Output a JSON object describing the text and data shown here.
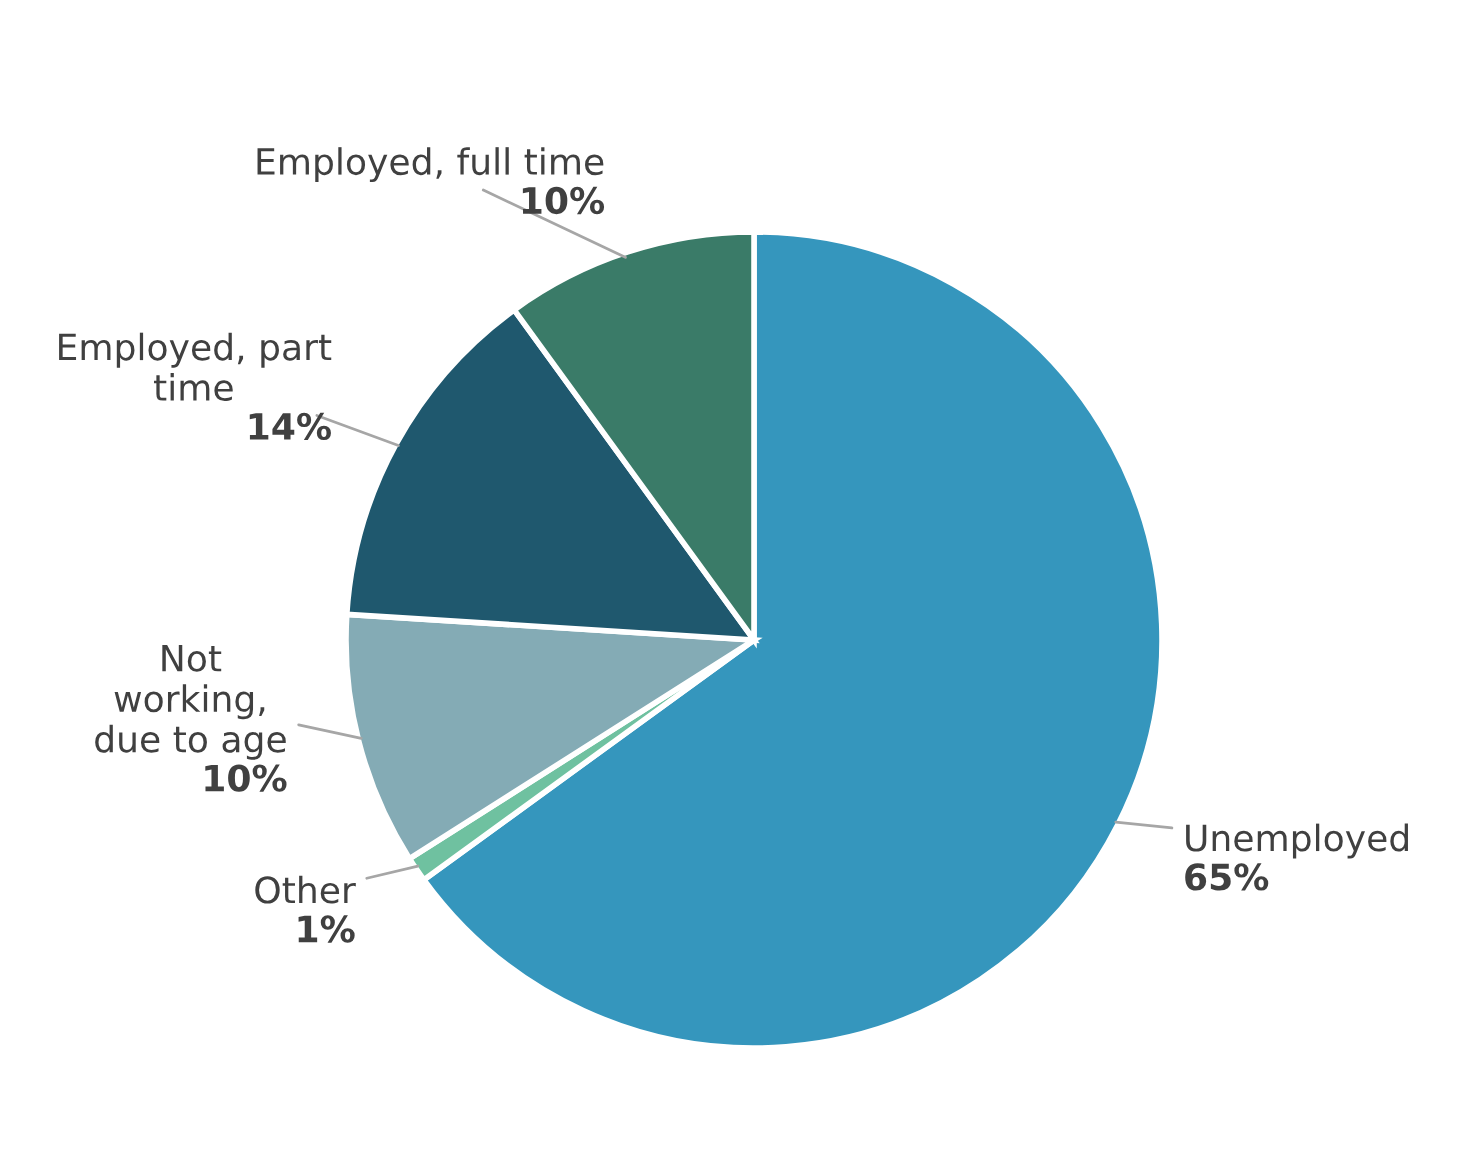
{
  "chart_data": {
    "type": "pie",
    "categories": [
      "Unemployed",
      "Other",
      "Not\nworking,\ndue to age",
      "Employed, part\ntime",
      "Employed, full time"
    ],
    "values": [
      65,
      1,
      10,
      14,
      10
    ],
    "colors": [
      "#3596bd",
      "#6fc1a0",
      "#84abb5",
      "#1f586e",
      "#3a7b68"
    ],
    "value_labels": [
      "65%",
      "1%",
      "10%",
      "14%",
      "10%"
    ],
    "legend": false
  }
}
